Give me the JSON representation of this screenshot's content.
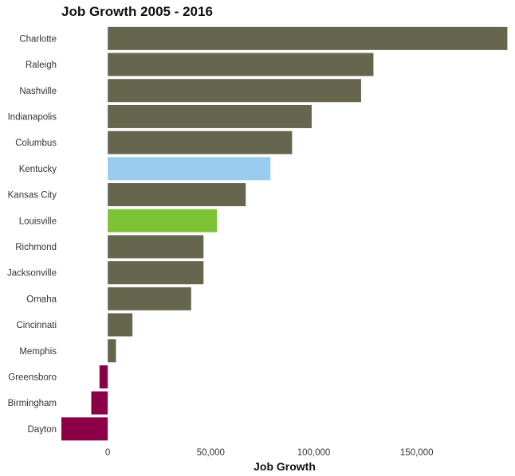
{
  "chart_data": {
    "type": "bar",
    "orientation": "horizontal",
    "title": "Job Growth 2005 - 2016",
    "xlabel": "Job Growth",
    "ylabel": "",
    "categories": [
      "Charlotte",
      "Raleigh",
      "Nashville",
      "Indianapolis",
      "Columbus",
      "Kentucky",
      "Kansas City",
      "Louisville",
      "Richmond",
      "Jacksonville",
      "Omaha",
      "Cincinnati",
      "Memphis",
      "Greensboro",
      "Birmingham",
      "Dayton"
    ],
    "values": [
      194000,
      129000,
      123000,
      99000,
      89500,
      79000,
      67000,
      53000,
      46500,
      46500,
      40500,
      12000,
      4000,
      -4000,
      -8000,
      -22500
    ],
    "colors": [
      "#66664f",
      "#66664f",
      "#66664f",
      "#66664f",
      "#66664f",
      "#99ccee",
      "#66664f",
      "#7dc234",
      "#66664f",
      "#66664f",
      "#66664f",
      "#66664f",
      "#66664f",
      "#8b0046",
      "#8b0046",
      "#8b0046"
    ],
    "xlim": [
      -22500,
      195000
    ],
    "xticks": [
      0,
      50000,
      100000,
      150000
    ],
    "xtick_labels": [
      "0",
      "50,000",
      "100,000",
      "150,000"
    ],
    "grid": false,
    "legend": "none"
  }
}
